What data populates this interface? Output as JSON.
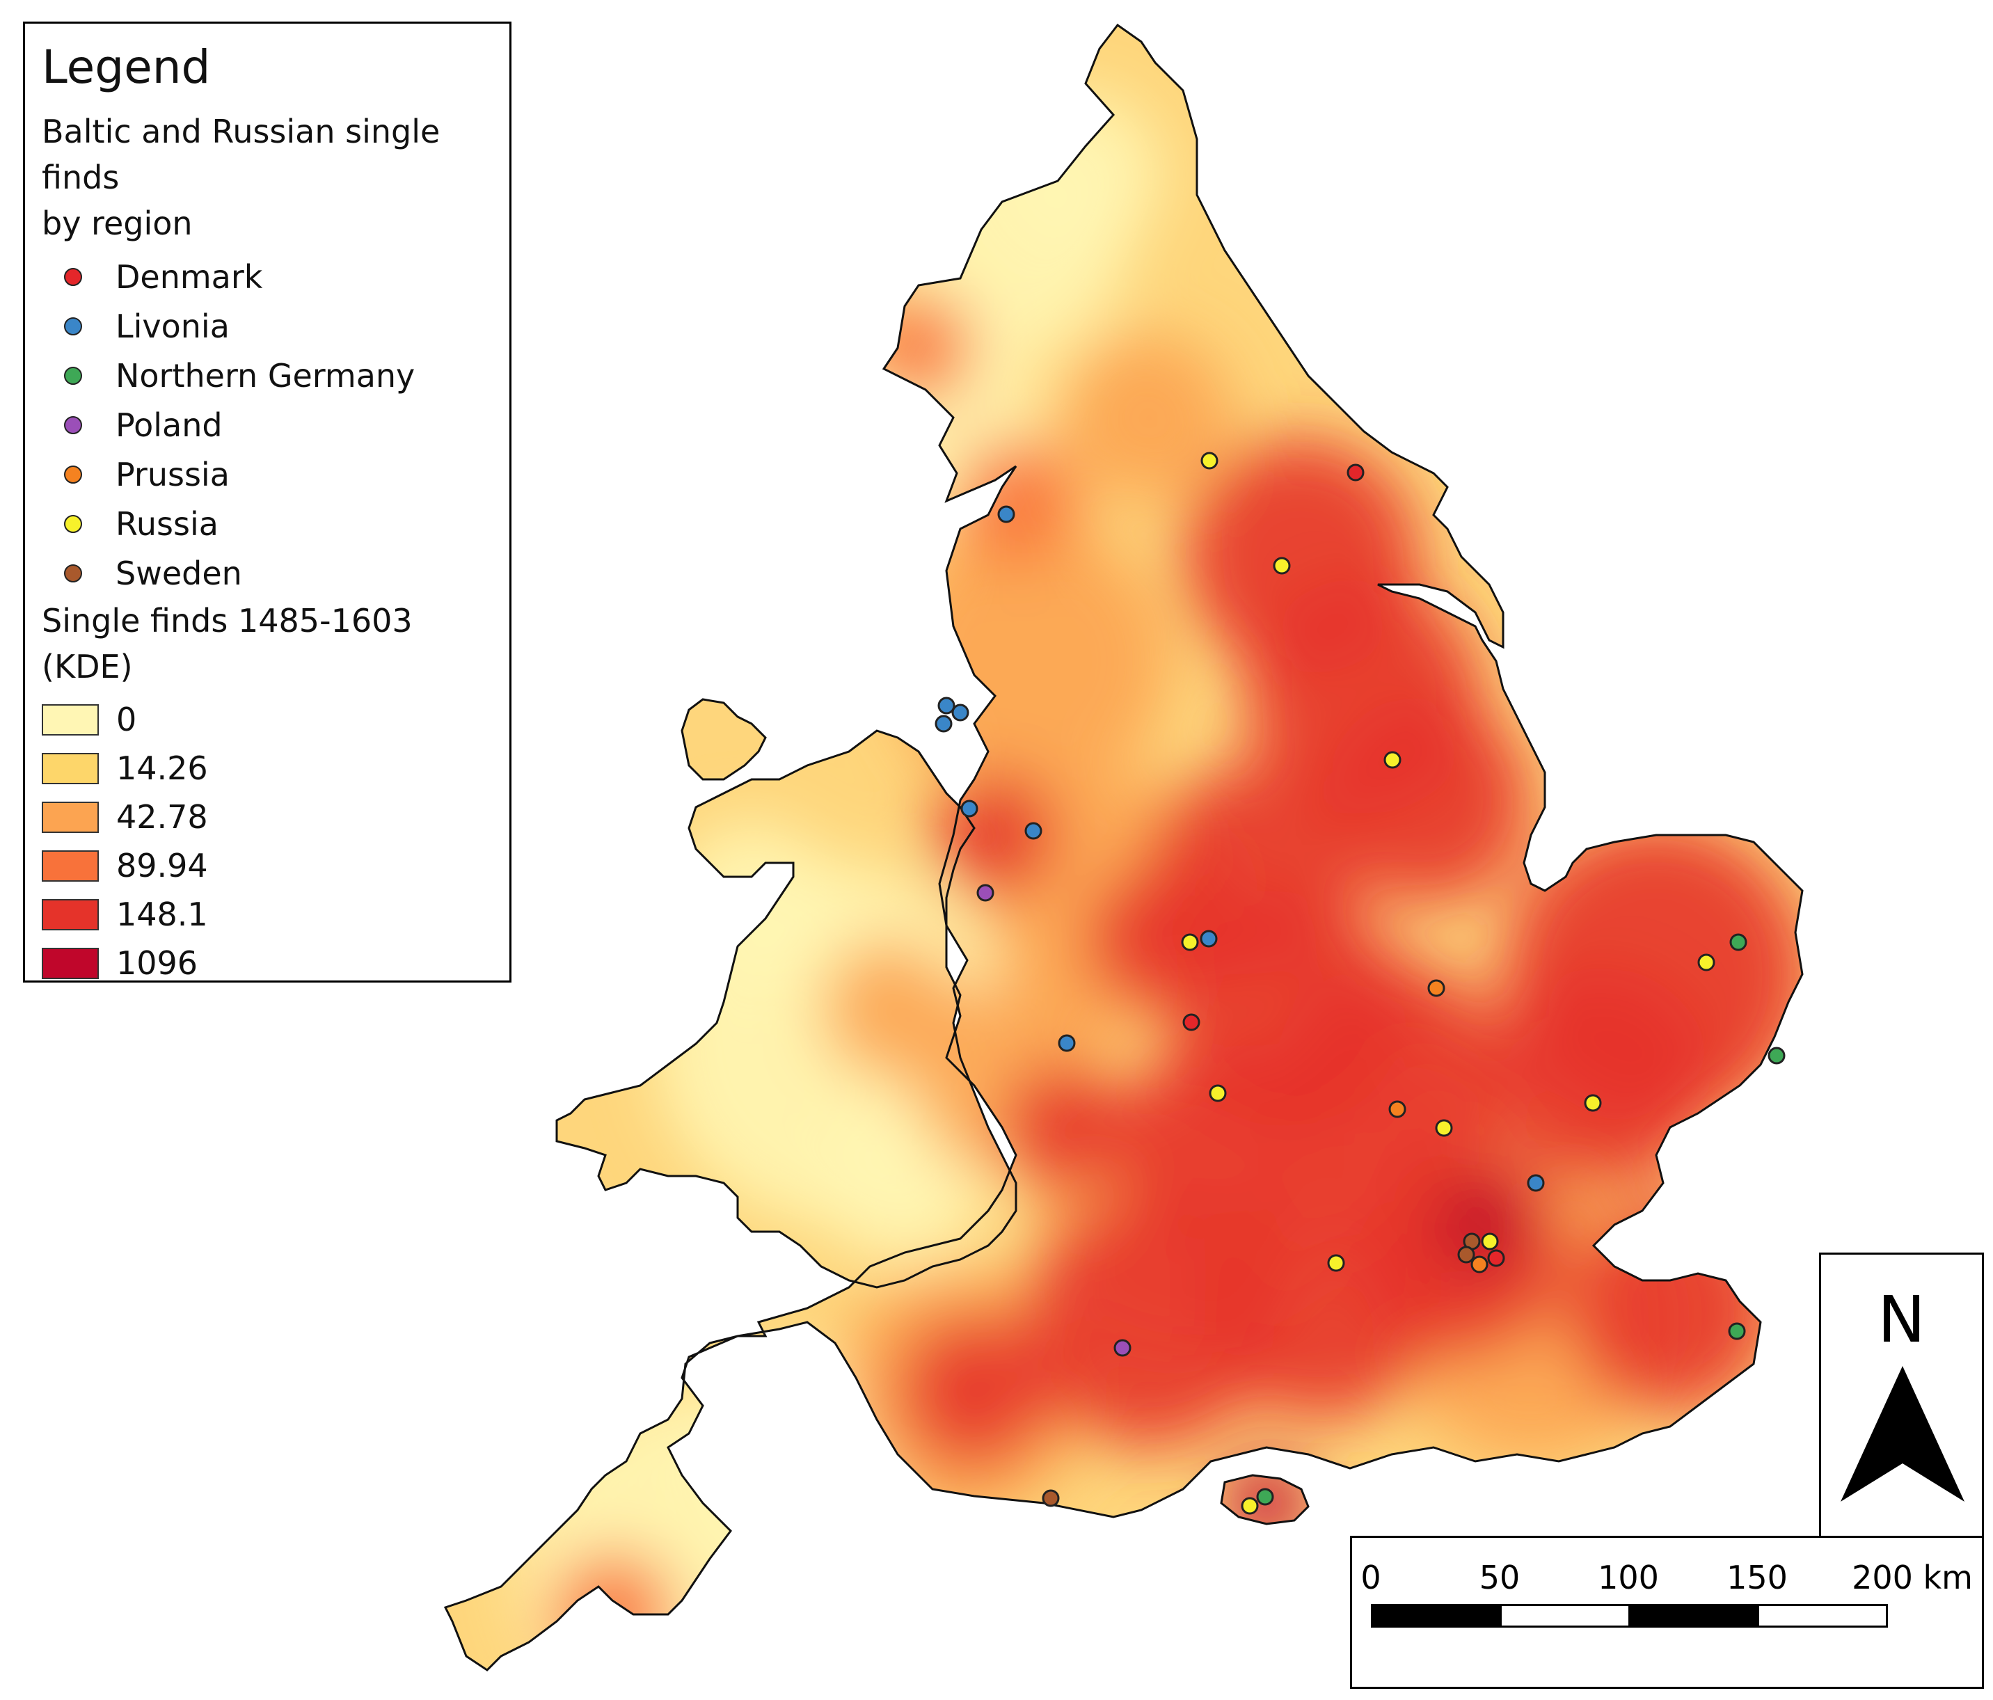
{
  "legend": {
    "title": "Legend",
    "points_title_line1": "Baltic and Russian single finds",
    "points_title_line2": "by region",
    "regions": [
      {
        "label": "Denmark",
        "color": "#e4262a"
      },
      {
        "label": "Livonia",
        "color": "#3a86c8"
      },
      {
        "label": "Northern Germany",
        "color": "#3ea856"
      },
      {
        "label": "Poland",
        "color": "#9b4fb8"
      },
      {
        "label": "Prussia",
        "color": "#f58220"
      },
      {
        "label": "Russia",
        "color": "#f7f12b"
      },
      {
        "label": "Sweden",
        "color": "#a9592c"
      }
    ],
    "kde_title_line1": "Single finds 1485-1603",
    "kde_title_line2": "(KDE)",
    "kde_classes": [
      {
        "label": "0",
        "color": "#fff6b4"
      },
      {
        "label": "14.26",
        "color": "#fdd66a"
      },
      {
        "label": "42.78",
        "color": "#fca451"
      },
      {
        "label": "89.94",
        "color": "#f8723a"
      },
      {
        "label": "148.1",
        "color": "#e5332a"
      },
      {
        "label": "1096",
        "color": "#c0062b"
      }
    ]
  },
  "north_arrow": {
    "label": "N"
  },
  "scale_bar": {
    "labels": [
      "0",
      "50",
      "100",
      "150",
      "200 km"
    ]
  },
  "finds": [
    {
      "region": "Russia",
      "color": "#f7f12b"
    },
    {
      "region": "Denmark",
      "color": "#e4262a"
    },
    {
      "region": "Livonia",
      "color": "#3a86c8"
    },
    {
      "region": "Russia",
      "color": "#f7f12b"
    },
    {
      "region": "Livonia",
      "color": "#3a86c8"
    },
    {
      "region": "Livonia",
      "color": "#3a86c8"
    },
    {
      "region": "Livonia",
      "color": "#3a86c8"
    },
    {
      "region": "Russia",
      "color": "#f7f12b"
    },
    {
      "region": "Livonia",
      "color": "#3a86c8"
    },
    {
      "region": "Livonia",
      "color": "#3a86c8"
    },
    {
      "region": "Poland",
      "color": "#9b4fb8"
    },
    {
      "region": "Russia",
      "color": "#f7f12b"
    },
    {
      "region": "Livonia",
      "color": "#3a86c8"
    },
    {
      "region": "Prussia",
      "color": "#f58220"
    },
    {
      "region": "Denmark",
      "color": "#e4262a"
    },
    {
      "region": "Livonia",
      "color": "#3a86c8"
    },
    {
      "region": "Russia",
      "color": "#f7f12b"
    },
    {
      "region": "Prussia",
      "color": "#f58220"
    },
    {
      "region": "Russia",
      "color": "#f7f12b"
    },
    {
      "region": "Russia",
      "color": "#f7f12b"
    },
    {
      "region": "Northern Germany",
      "color": "#3ea856"
    },
    {
      "region": "Russia",
      "color": "#f7f12b"
    },
    {
      "region": "Northern Germany",
      "color": "#3ea856"
    },
    {
      "region": "Livonia",
      "color": "#3a86c8"
    },
    {
      "region": "Sweden",
      "color": "#a9592c"
    },
    {
      "region": "Russia",
      "color": "#f7f12b"
    },
    {
      "region": "Sweden",
      "color": "#a9592c"
    },
    {
      "region": "Prussia",
      "color": "#f58220"
    },
    {
      "region": "Denmark",
      "color": "#e4262a"
    },
    {
      "region": "Russia",
      "color": "#f7f12b"
    },
    {
      "region": "Northern Germany",
      "color": "#3ea856"
    },
    {
      "region": "Poland",
      "color": "#9b4fb8"
    },
    {
      "region": "Sweden",
      "color": "#a9592c"
    },
    {
      "region": "Northern Germany",
      "color": "#3ea856"
    },
    {
      "region": "Russia",
      "color": "#f7f12b"
    }
  ]
}
